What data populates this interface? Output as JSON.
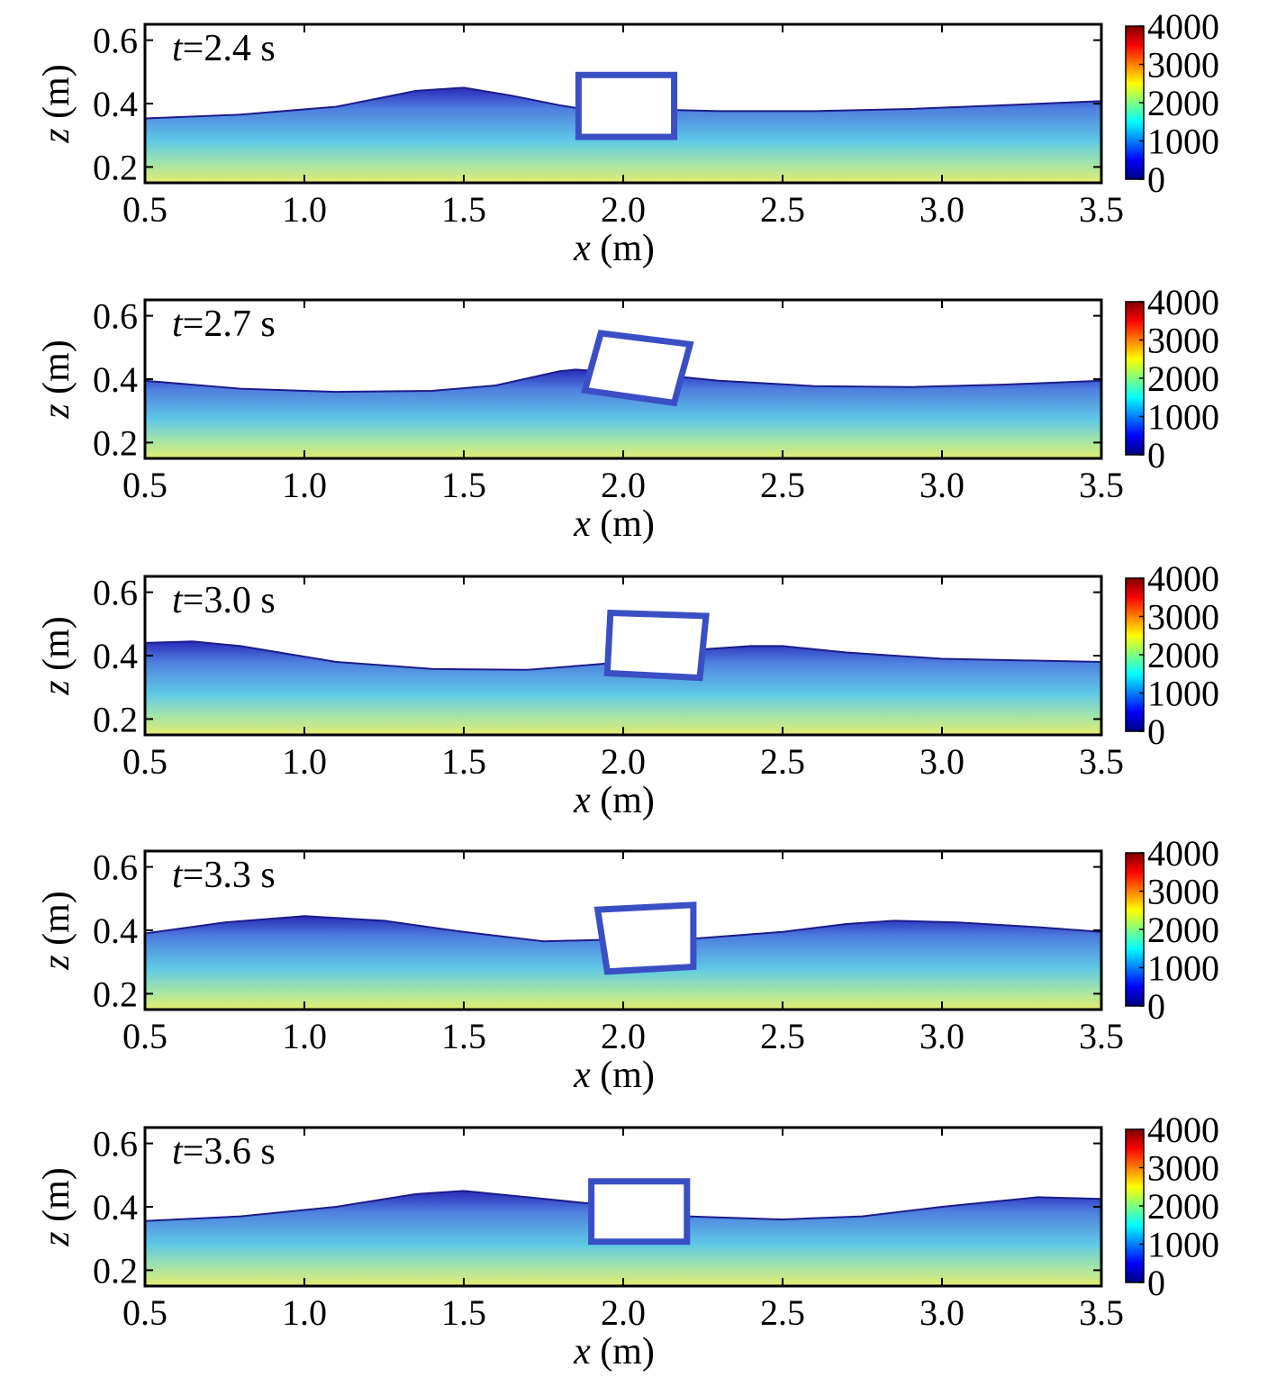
{
  "chart_data": [
    {
      "type": "area",
      "time_label": "t=2.4 s",
      "xlabel": "x (m)",
      "ylabel": "z (m)",
      "xlim": [
        0.5,
        3.5
      ],
      "ylim": [
        0.15,
        0.65
      ],
      "xticks": [
        "0.5",
        "1.0",
        "1.5",
        "2.0",
        "2.5",
        "3.0",
        "3.5"
      ],
      "yticks": [
        "0.2",
        "0.4",
        "0.6"
      ],
      "free_surface": {
        "x": [
          0.5,
          0.8,
          1.1,
          1.35,
          1.5,
          1.65,
          1.8,
          1.86,
          2.14,
          2.3,
          2.6,
          2.9,
          3.2,
          3.5
        ],
        "z": [
          0.353,
          0.365,
          0.39,
          0.44,
          0.45,
          0.425,
          0.395,
          0.385,
          0.38,
          0.376,
          0.376,
          0.383,
          0.395,
          0.408
        ]
      },
      "box_corners": [
        [
          1.86,
          0.49
        ],
        [
          2.16,
          0.49
        ],
        [
          2.16,
          0.295
        ],
        [
          1.86,
          0.295
        ]
      ],
      "colorbar": {
        "ticks": [
          "0",
          "1000",
          "2000",
          "3000",
          "4000"
        ],
        "range": [
          0,
          4000
        ]
      }
    },
    {
      "type": "area",
      "time_label": "t=2.7 s",
      "xlabel": "x (m)",
      "ylabel": "z (m)",
      "xlim": [
        0.5,
        3.5
      ],
      "ylim": [
        0.15,
        0.65
      ],
      "xticks": [
        "0.5",
        "1.0",
        "1.5",
        "2.0",
        "2.5",
        "3.0",
        "3.5"
      ],
      "yticks": [
        "0.2",
        "0.4",
        "0.6"
      ],
      "free_surface": {
        "x": [
          0.5,
          0.8,
          1.1,
          1.4,
          1.6,
          1.8,
          1.85,
          2.15,
          2.3,
          2.6,
          2.9,
          3.2,
          3.5
        ],
        "z": [
          0.395,
          0.37,
          0.36,
          0.363,
          0.38,
          0.425,
          0.43,
          0.41,
          0.395,
          0.378,
          0.375,
          0.383,
          0.395
        ]
      },
      "box_corners": [
        [
          1.93,
          0.545
        ],
        [
          2.21,
          0.51
        ],
        [
          2.16,
          0.325
        ],
        [
          1.88,
          0.365
        ]
      ],
      "colorbar": {
        "ticks": [
          "0",
          "1000",
          "2000",
          "3000",
          "4000"
        ],
        "range": [
          0,
          4000
        ]
      }
    },
    {
      "type": "area",
      "time_label": "t=3.0 s",
      "xlabel": "x (m)",
      "ylabel": "z (m)",
      "xlim": [
        0.5,
        3.5
      ],
      "ylim": [
        0.15,
        0.65
      ],
      "xticks": [
        "0.5",
        "1.0",
        "1.5",
        "2.0",
        "2.5",
        "3.0",
        "3.5"
      ],
      "yticks": [
        "0.2",
        "0.4",
        "0.6"
      ],
      "free_surface": {
        "x": [
          0.5,
          0.65,
          0.8,
          1.1,
          1.4,
          1.7,
          1.95,
          2.25,
          2.4,
          2.5,
          2.7,
          3.0,
          3.5
        ],
        "z": [
          0.44,
          0.445,
          0.43,
          0.38,
          0.358,
          0.355,
          0.375,
          0.42,
          0.43,
          0.43,
          0.41,
          0.39,
          0.38
        ]
      },
      "box_corners": [
        [
          1.96,
          0.535
        ],
        [
          2.26,
          0.525
        ],
        [
          2.24,
          0.33
        ],
        [
          1.95,
          0.345
        ]
      ],
      "colorbar": {
        "ticks": [
          "0",
          "1000",
          "2000",
          "3000",
          "4000"
        ],
        "range": [
          0,
          4000
        ]
      }
    },
    {
      "type": "area",
      "time_label": "t=3.3 s",
      "xlabel": "x (m)",
      "ylabel": "z (m)",
      "xlim": [
        0.5,
        3.5
      ],
      "ylim": [
        0.15,
        0.65
      ],
      "xticks": [
        "0.5",
        "1.0",
        "1.5",
        "2.0",
        "2.5",
        "3.0",
        "3.5"
      ],
      "yticks": [
        "0.2",
        "0.4",
        "0.6"
      ],
      "free_surface": {
        "x": [
          0.5,
          0.75,
          1.0,
          1.25,
          1.5,
          1.75,
          1.93,
          2.24,
          2.5,
          2.7,
          2.85,
          3.05,
          3.3,
          3.5
        ],
        "z": [
          0.39,
          0.425,
          0.445,
          0.43,
          0.395,
          0.365,
          0.37,
          0.375,
          0.395,
          0.42,
          0.43,
          0.425,
          0.41,
          0.395
        ]
      },
      "box_corners": [
        [
          1.92,
          0.465
        ],
        [
          2.22,
          0.48
        ],
        [
          2.22,
          0.285
        ],
        [
          1.95,
          0.27
        ]
      ],
      "colorbar": {
        "ticks": [
          "0",
          "1000",
          "2000",
          "3000",
          "4000"
        ],
        "range": [
          0,
          4000
        ]
      }
    },
    {
      "type": "area",
      "time_label": "t=3.6 s",
      "xlabel": "x (m)",
      "ylabel": "z (m)",
      "xlim": [
        0.5,
        3.5
      ],
      "ylim": [
        0.15,
        0.65
      ],
      "xticks": [
        "0.5",
        "1.0",
        "1.5",
        "2.0",
        "2.5",
        "3.0",
        "3.5"
      ],
      "yticks": [
        "0.2",
        "0.4",
        "0.6"
      ],
      "free_surface": {
        "x": [
          0.5,
          0.8,
          1.1,
          1.35,
          1.5,
          1.7,
          1.9,
          2.2,
          2.5,
          2.75,
          3.0,
          3.3,
          3.5
        ],
        "z": [
          0.355,
          0.37,
          0.4,
          0.44,
          0.45,
          0.43,
          0.41,
          0.37,
          0.36,
          0.37,
          0.4,
          0.43,
          0.425
        ]
      },
      "box_corners": [
        [
          1.9,
          0.48
        ],
        [
          2.2,
          0.48
        ],
        [
          2.2,
          0.29
        ],
        [
          1.9,
          0.29
        ]
      ],
      "colorbar": {
        "ticks": [
          "0",
          "1000",
          "2000",
          "3000",
          "4000"
        ],
        "range": [
          0,
          4000
        ]
      }
    }
  ],
  "colors": {
    "jet": [
      "#00007f",
      "#0000ff",
      "#007fff",
      "#00ffff",
      "#7fff7f",
      "#ffff00",
      "#ff7f00",
      "#ff0000",
      "#7f0000"
    ],
    "water_surface": "#2a2ab8",
    "water_mid": "#5fc9e6",
    "water_bottom": "#ecec6a",
    "box_outline": "#3b4fc4"
  }
}
